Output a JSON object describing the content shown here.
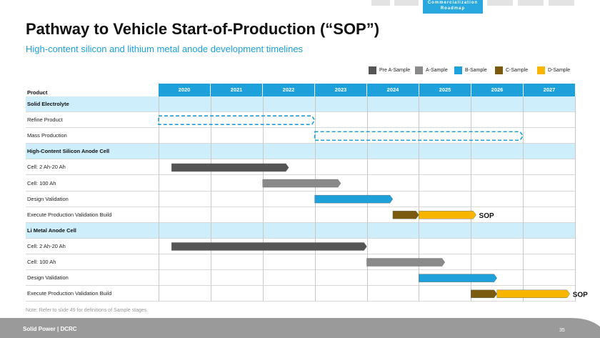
{
  "nav": {
    "active_line1": "Commercialization",
    "active_line2": "Roadmap"
  },
  "title": "Pathway to Vehicle Start-of-Production (“SOP”)",
  "subtitle": "High-content silicon and lithium metal anode development timelines",
  "legend": [
    {
      "label": "Pre A-Sample",
      "color": "#555555"
    },
    {
      "label": "A-Sample",
      "color": "#8a8a8a"
    },
    {
      "label": "B-Sample",
      "color": "#1ea0da"
    },
    {
      "label": "C-Sample",
      "color": "#7a5a0e"
    },
    {
      "label": "D-Sample",
      "color": "#f7b500"
    }
  ],
  "table": {
    "header_label": "Product",
    "years": [
      "2020",
      "2021",
      "2022",
      "2023",
      "2024",
      "2025",
      "2026",
      "2027"
    ],
    "rows": [
      {
        "label": "Solid Electrolyte",
        "section": true
      },
      {
        "label": "Refine Product",
        "section": false
      },
      {
        "label": "Mass Production",
        "section": false
      },
      {
        "label": "High-Content Silicon Anode Cell",
        "section": true
      },
      {
        "label": "Cell: 2 Ah-20 Ah",
        "section": false
      },
      {
        "label": "Cell: 100 Ah",
        "section": false
      },
      {
        "label": "Design Validation",
        "section": false
      },
      {
        "label": "Execute Production Validation Build",
        "section": false
      },
      {
        "label": "Li Metal Anode Cell",
        "section": true
      },
      {
        "label": "Cell: 2 Ah-20 Ah",
        "section": false
      },
      {
        "label": "Cell: 100 Ah",
        "section": false
      },
      {
        "label": "Design Validation",
        "section": false
      },
      {
        "label": "Execute Production Validation Build",
        "section": false
      }
    ]
  },
  "bars": [
    {
      "row": 1,
      "start": 2020.0,
      "end": 2023.0,
      "stage": "dashed"
    },
    {
      "row": 2,
      "start": 2023.0,
      "end": 2027.0,
      "stage": "dashed"
    },
    {
      "row": 4,
      "start": 2020.25,
      "end": 2022.5,
      "stage": "Pre A-Sample"
    },
    {
      "row": 5,
      "start": 2022.0,
      "end": 2023.5,
      "stage": "A-Sample"
    },
    {
      "row": 6,
      "start": 2023.0,
      "end": 2024.5,
      "stage": "B-Sample"
    },
    {
      "row": 7,
      "start": 2024.5,
      "end": 2025.0,
      "stage": "C-Sample"
    },
    {
      "row": 7,
      "start": 2025.0,
      "end": 2026.1,
      "stage": "D-Sample"
    },
    {
      "row": 9,
      "start": 2020.25,
      "end": 2024.0,
      "stage": "Pre A-Sample"
    },
    {
      "row": 10,
      "start": 2024.0,
      "end": 2025.5,
      "stage": "A-Sample"
    },
    {
      "row": 11,
      "start": 2025.0,
      "end": 2026.5,
      "stage": "B-Sample"
    },
    {
      "row": 12,
      "start": 2026.0,
      "end": 2026.5,
      "stage": "C-Sample"
    },
    {
      "row": 12,
      "start": 2026.5,
      "end": 2027.9,
      "stage": "D-Sample"
    }
  ],
  "sop_markers": [
    {
      "row": 7,
      "label": "SOP",
      "at": 2026.1
    },
    {
      "row": 12,
      "label": "SOP",
      "at": 2027.9
    }
  ],
  "note": "Note: Refer to slide 49 for definitions of Sample stages.",
  "footer": {
    "logo_text": "Solid Power | DCRC",
    "page_number": "35"
  }
}
